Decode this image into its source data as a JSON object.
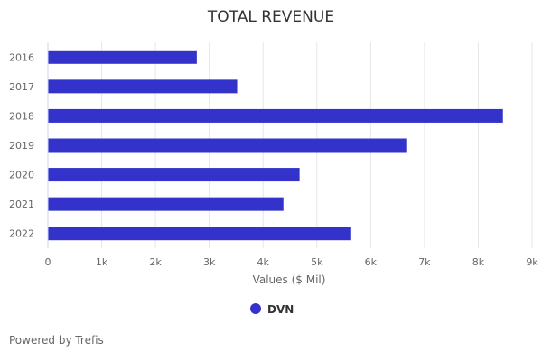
{
  "chart_data": {
    "type": "bar",
    "orientation": "horizontal",
    "title": "TOTAL REVENUE",
    "categories": [
      "2016",
      "2017",
      "2018",
      "2019",
      "2020",
      "2021",
      "2022"
    ],
    "series": [
      {
        "name": "DVN",
        "color": "#3333cc",
        "values": [
          2760,
          3510,
          8450,
          6670,
          4670,
          4370,
          5630
        ]
      }
    ],
    "xlabel": "Values ($ Mil)",
    "ylabel": "",
    "xlim": [
      0,
      9000
    ],
    "xticks": [
      {
        "value": 0,
        "label": "0"
      },
      {
        "value": 1000,
        "label": "1k"
      },
      {
        "value": 2000,
        "label": "2k"
      },
      {
        "value": 3000,
        "label": "3k"
      },
      {
        "value": 4000,
        "label": "4k"
      },
      {
        "value": 5000,
        "label": "5k"
      },
      {
        "value": 6000,
        "label": "6k"
      },
      {
        "value": 7000,
        "label": "7k"
      },
      {
        "value": 8000,
        "label": "8k"
      },
      {
        "value": 9000,
        "label": "9k"
      }
    ],
    "grid": true,
    "legend": "bottom-center"
  },
  "credits": "Powered by Trefis"
}
